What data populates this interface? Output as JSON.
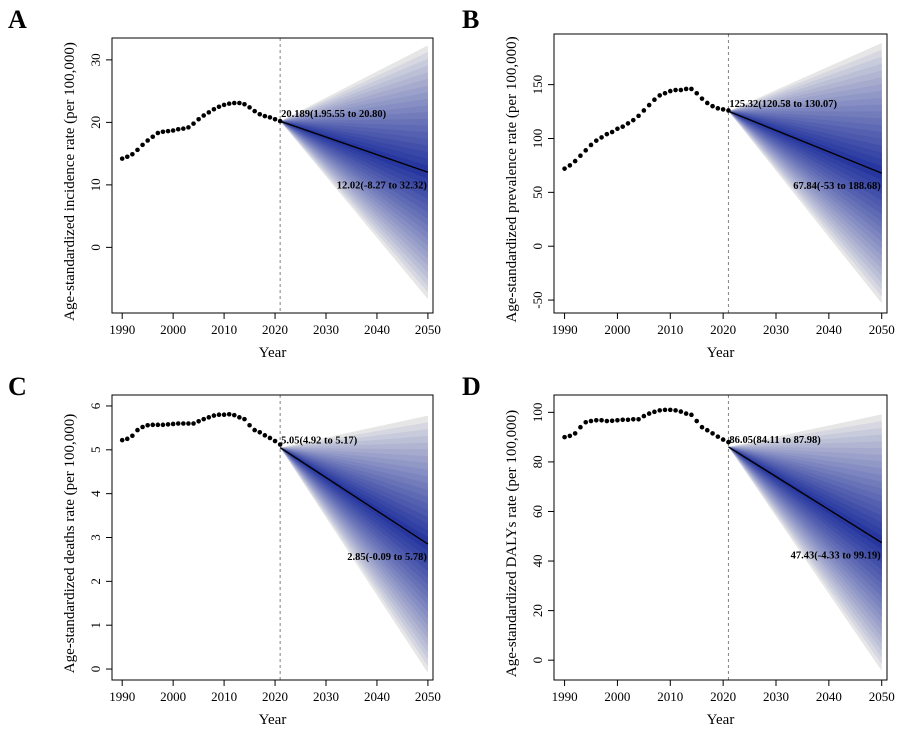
{
  "chart_data": [
    {
      "panel": "A",
      "type": "line",
      "xlabel": "Year",
      "ylabel": "Age-standardized incidence rate (per 100,000)",
      "xlim": [
        1988,
        2051
      ],
      "ylim": [
        -10.5,
        33.5
      ],
      "x_ticks": [
        1990,
        2000,
        2010,
        2020,
        2030,
        2040,
        2050
      ],
      "y_ticks": [
        0,
        10,
        20,
        30
      ],
      "vline_x": 2021,
      "observed": {
        "x": [
          1990,
          1991,
          1992,
          1993,
          1994,
          1995,
          1996,
          1997,
          1998,
          1999,
          2000,
          2001,
          2002,
          2003,
          2004,
          2005,
          2006,
          2007,
          2008,
          2009,
          2010,
          2011,
          2012,
          2013,
          2014,
          2015,
          2016,
          2017,
          2018,
          2019,
          2020,
          2021
        ],
        "y": [
          14.2,
          14.5,
          14.9,
          15.6,
          16.4,
          17.1,
          17.7,
          18.3,
          18.5,
          18.6,
          18.7,
          18.9,
          19.0,
          19.2,
          19.8,
          20.5,
          21.1,
          21.6,
          22.1,
          22.5,
          22.8,
          23.0,
          23.1,
          23.1,
          22.9,
          22.4,
          21.8,
          21.3,
          21.0,
          20.8,
          20.5,
          20.2
        ]
      },
      "projection": {
        "x_start": 2021,
        "x_end": 2050,
        "start_value": 20.189,
        "end_value": 12.02,
        "end_lower": -8.27,
        "end_upper": 32.32,
        "band_levels": 19
      },
      "annotations": {
        "start": "20.189(1.95.55 to 20.80)",
        "end": "12.02(-8.27 to 32.32)"
      }
    },
    {
      "panel": "B",
      "type": "line",
      "xlabel": "Year",
      "ylabel": "Age-standardized prevalence rate (per 100,000)",
      "xlim": [
        1988,
        2051
      ],
      "ylim": [
        -62,
        197
      ],
      "x_ticks": [
        1990,
        2000,
        2010,
        2020,
        2030,
        2040,
        2050
      ],
      "y_ticks": [
        -50,
        0,
        50,
        100,
        150
      ],
      "vline_x": 2021,
      "observed": {
        "x": [
          1990,
          1991,
          1992,
          1993,
          1994,
          1995,
          1996,
          1997,
          1998,
          1999,
          2000,
          2001,
          2002,
          2003,
          2004,
          2005,
          2006,
          2007,
          2008,
          2009,
          2010,
          2011,
          2012,
          2013,
          2014,
          2015,
          2016,
          2017,
          2018,
          2019,
          2020,
          2021
        ],
        "y": [
          72,
          75,
          79,
          84,
          89,
          94,
          98,
          101,
          104,
          106,
          109,
          111,
          114,
          117,
          121,
          126,
          131,
          136,
          140,
          142,
          144,
          145,
          145,
          146,
          146,
          142,
          137,
          133,
          130,
          128,
          127,
          126
        ]
      },
      "projection": {
        "x_start": 2021,
        "x_end": 2050,
        "start_value": 125.32,
        "end_value": 67.84,
        "end_lower": -53,
        "end_upper": 188.68,
        "band_levels": 19
      },
      "annotations": {
        "start": "125.32(120.58 to 130.07)",
        "end": "67.84(-53 to 188.68)"
      }
    },
    {
      "panel": "C",
      "type": "line",
      "xlabel": "Year",
      "ylabel": "Age-standardized deaths rate (per 100,000)",
      "xlim": [
        1988,
        2051
      ],
      "ylim": [
        -0.25,
        6.25
      ],
      "x_ticks": [
        1990,
        2000,
        2010,
        2020,
        2030,
        2040,
        2050
      ],
      "y_ticks": [
        0,
        1,
        2,
        3,
        4,
        5,
        6
      ],
      "vline_x": 2021,
      "observed": {
        "x": [
          1990,
          1991,
          1992,
          1993,
          1994,
          1995,
          1996,
          1997,
          1998,
          1999,
          2000,
          2001,
          2002,
          2003,
          2004,
          2005,
          2006,
          2007,
          2008,
          2009,
          2010,
          2011,
          2012,
          2013,
          2014,
          2015,
          2016,
          2017,
          2018,
          2019,
          2020,
          2021
        ],
        "y": [
          5.22,
          5.25,
          5.32,
          5.45,
          5.52,
          5.56,
          5.57,
          5.57,
          5.57,
          5.58,
          5.59,
          5.6,
          5.6,
          5.6,
          5.6,
          5.65,
          5.7,
          5.74,
          5.78,
          5.8,
          5.8,
          5.81,
          5.79,
          5.74,
          5.7,
          5.56,
          5.45,
          5.4,
          5.33,
          5.27,
          5.2,
          5.12
        ]
      },
      "projection": {
        "x_start": 2021,
        "x_end": 2050,
        "start_value": 5.05,
        "end_value": 2.85,
        "end_lower": -0.09,
        "end_upper": 5.78,
        "band_levels": 19
      },
      "annotations": {
        "start": "5.05(4.92 to 5.17)",
        "end": "2.85(-0.09 to 5.78)"
      }
    },
    {
      "panel": "D",
      "type": "line",
      "xlabel": "Year",
      "ylabel": "Age-standardized DALYs rate (per 100,000)",
      "xlim": [
        1988,
        2051
      ],
      "ylim": [
        -8,
        107
      ],
      "x_ticks": [
        1990,
        2000,
        2010,
        2020,
        2030,
        2040,
        2050
      ],
      "y_ticks": [
        0,
        20,
        40,
        60,
        80,
        100
      ],
      "vline_x": 2021,
      "observed": {
        "x": [
          1990,
          1991,
          1992,
          1993,
          1994,
          1995,
          1996,
          1997,
          1998,
          1999,
          2000,
          2001,
          2002,
          2003,
          2004,
          2005,
          2006,
          2007,
          2008,
          2009,
          2010,
          2011,
          2012,
          2013,
          2014,
          2015,
          2016,
          2017,
          2018,
          2019,
          2020,
          2021
        ],
        "y": [
          90,
          90.5,
          91.5,
          94,
          96,
          96.5,
          96.8,
          96.8,
          96.5,
          96.6,
          96.8,
          97,
          97,
          97.2,
          97.2,
          98.5,
          99.5,
          100.2,
          100.8,
          101,
          101,
          100.8,
          100.3,
          99.5,
          99,
          96.5,
          94,
          92.8,
          91.5,
          90.2,
          89,
          88
        ]
      },
      "projection": {
        "x_start": 2021,
        "x_end": 2050,
        "start_value": 86.05,
        "end_value": 47.43,
        "end_lower": -4.33,
        "end_upper": 99.19,
        "band_levels": 19
      },
      "annotations": {
        "start": "86.05(84.11 to 87.98)",
        "end": "47.43(-4.33 to 99.19)"
      }
    }
  ]
}
